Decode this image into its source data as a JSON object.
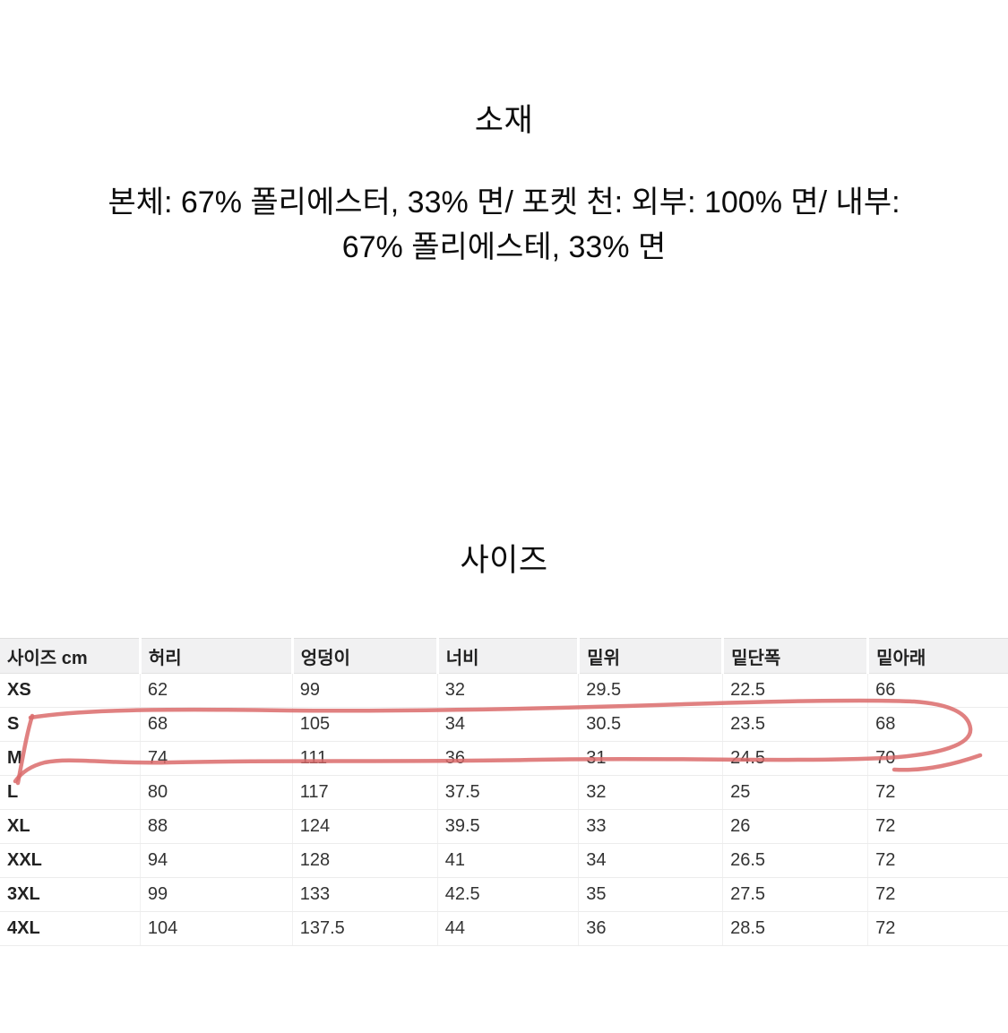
{
  "material": {
    "title": "소재",
    "description_lines": [
      "본체: 67% 폴리에스터, 33% 면/ 포켓 천: 외부: 100% 면/ 내부:",
      "67% 폴리에스테, 33% 면"
    ]
  },
  "size_section": {
    "title": "사이즈"
  },
  "size_table": {
    "columns": [
      "사이즈 cm",
      "허리",
      "엉덩이",
      "너비",
      "밑위",
      "밑단폭",
      "밑아래"
    ],
    "rows": [
      {
        "size": "XS",
        "values": [
          "62",
          "99",
          "32",
          "29.5",
          "22.5",
          "66"
        ]
      },
      {
        "size": "S",
        "values": [
          "68",
          "105",
          "34",
          "30.5",
          "23.5",
          "68"
        ]
      },
      {
        "size": "M",
        "values": [
          "74",
          "111",
          "36",
          "31",
          "24.5",
          "70"
        ]
      },
      {
        "size": "L",
        "values": [
          "80",
          "117",
          "37.5",
          "32",
          "25",
          "72"
        ]
      },
      {
        "size": "XL",
        "values": [
          "88",
          "124",
          "39.5",
          "33",
          "26",
          "72"
        ]
      },
      {
        "size": "XXL",
        "values": [
          "94",
          "128",
          "41",
          "34",
          "26.5",
          "72"
        ]
      },
      {
        "size": "3XL",
        "values": [
          "99",
          "133",
          "42.5",
          "35",
          "27.5",
          "72"
        ]
      },
      {
        "size": "4XL",
        "values": [
          "104",
          "137.5",
          "44",
          "36",
          "28.5",
          "72"
        ]
      }
    ]
  },
  "annotation": {
    "type": "hand-drawn-circle",
    "highlighted_row": "M",
    "color": "#db6b6b"
  }
}
